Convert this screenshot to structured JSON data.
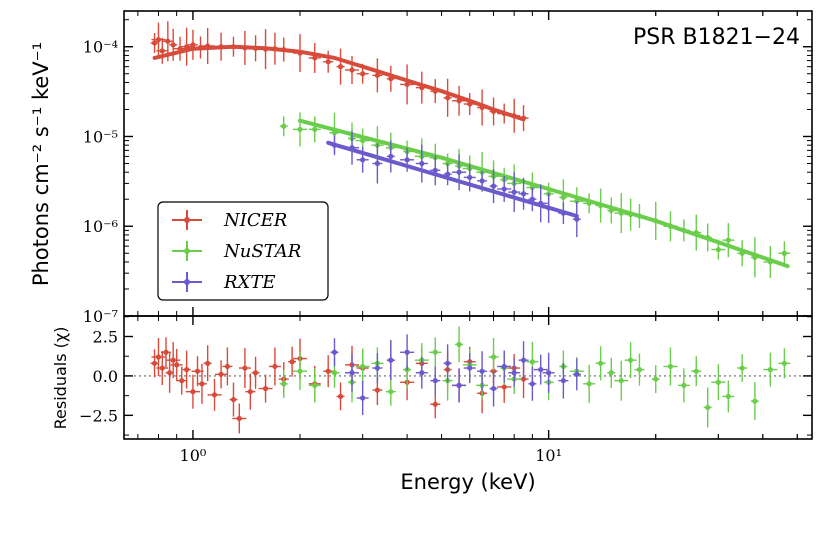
{
  "chart_data": [
    {
      "type": "scatter",
      "panel": "spectrum",
      "title": "PSR B1821−24",
      "xlabel": "",
      "ylabel": "Photons cm⁻² s⁻¹ keV⁻¹",
      "xscale": "log",
      "yscale": "log",
      "xlim": [
        0.64,
        55
      ],
      "ylim": [
        1e-07,
        0.00025
      ],
      "y_ticks": [
        {
          "value": 0.0001,
          "label": "10⁻⁴"
        },
        {
          "value": 1e-05,
          "label": "10⁻⁵"
        },
        {
          "value": 1e-06,
          "label": "10⁻⁶"
        },
        {
          "value": 1e-07,
          "label": "10⁻⁷"
        }
      ],
      "legend": {
        "placement": "lower-left"
      },
      "series": [
        {
          "name": "NICER",
          "color": "#d84b3b",
          "x": [
            0.78,
            0.8,
            0.82,
            0.85,
            0.88,
            0.92,
            0.96,
            1.0,
            1.05,
            1.1,
            1.2,
            1.3,
            1.4,
            1.5,
            1.6,
            1.7,
            1.8,
            2.0,
            2.2,
            2.4,
            2.6,
            2.8,
            3.0,
            3.3,
            3.6,
            4.0,
            4.4,
            4.8,
            5.2,
            5.6,
            6.0,
            6.5,
            7.0,
            7.5,
            8.0,
            8.5
          ],
          "y": [
            0.00011,
            0.00012,
            9e-05,
            0.000115,
            0.000105,
            9.5e-05,
            0.0001,
            0.000105,
            9.8e-05,
            0.000102,
            0.0001,
            0.0001,
            9.7e-05,
            9.6e-05,
            9.4e-05,
            9.5e-05,
            9.3e-05,
            8.5e-05,
            7.5e-05,
            6.8e-05,
            6e-05,
            5.5e-05,
            5e-05,
            4.8e-05,
            4.4e-05,
            3.8e-05,
            3.5e-05,
            3.2e-05,
            2.7e-05,
            2.5e-05,
            2.3e-05,
            2.1e-05,
            1.9e-05,
            1.8e-05,
            1.7e-05,
            1.6e-05
          ],
          "model_x": [
            0.78,
            1.0,
            1.3,
            1.6,
            2.0,
            2.5,
            3.0,
            4.0,
            5.0,
            6.0,
            7.0,
            8.5
          ],
          "model_y": [
            7.5e-05,
            9.5e-05,
            0.0001,
            9.6e-05,
            8.8e-05,
            7.5e-05,
            6e-05,
            4.2e-05,
            3.2e-05,
            2.5e-05,
            2e-05,
            1.55e-05
          ]
        },
        {
          "name": "NuSTAR",
          "color": "#6acd4b",
          "x": [
            1.8,
            2.0,
            2.2,
            2.5,
            2.8,
            3.0,
            3.3,
            3.6,
            4.0,
            4.4,
            4.8,
            5.2,
            5.6,
            6.0,
            6.5,
            7.0,
            7.5,
            8.0,
            9.0,
            10.0,
            11.0,
            12.0,
            13.0,
            14.0,
            15.0,
            16.0,
            17.0,
            18.0,
            20.0,
            22.0,
            24.0,
            26.0,
            28.0,
            30.0,
            32.0,
            35.0,
            38.0,
            42.0,
            46.0
          ],
          "y": [
            1.3e-05,
            1.2e-05,
            1.2e-05,
            1.1e-05,
            9.5e-06,
            9e-06,
            8e-06,
            7.5e-06,
            6.8e-06,
            6e-06,
            5.8e-06,
            5e-06,
            4.7e-06,
            4.4e-06,
            4e-06,
            3.6e-06,
            3.3e-06,
            3e-06,
            2.7e-06,
            2.3e-06,
            2.1e-06,
            1.9e-06,
            1.8e-06,
            1.7e-06,
            1.5e-06,
            1.4e-06,
            1.35e-06,
            1.3e-06,
            1.15e-06,
            1e-06,
            9e-07,
            8.5e-07,
            7.5e-07,
            5.5e-07,
            7e-07,
            5e-07,
            4.5e-07,
            4e-07,
            5e-07
          ],
          "model_x": [
            2.0,
            5.0,
            10.0,
            20.0,
            47.0
          ],
          "model_y": [
            1.5e-05,
            5.8e-06,
            2.6e-06,
            1.15e-06,
            3.6e-07
          ]
        },
        {
          "name": "RXTE",
          "color": "#6a5acd",
          "x": [
            2.5,
            2.8,
            3.0,
            3.3,
            3.6,
            4.0,
            4.4,
            4.8,
            5.2,
            5.6,
            6.0,
            6.5,
            7.0,
            7.5,
            8.0,
            8.5,
            9.0,
            9.5,
            10.0,
            11.0,
            12.0
          ],
          "y": [
            8e-06,
            7.5e-06,
            5.5e-06,
            5e-06,
            6e-06,
            5.5e-06,
            5e-06,
            4.2e-06,
            3.8e-06,
            4e-06,
            3.5e-06,
            3.2e-06,
            2.8e-06,
            2.6e-06,
            2.4e-06,
            2.3e-06,
            2e-06,
            1.8e-06,
            1.6e-06,
            1.4e-06,
            1.2e-06
          ],
          "model_x": [
            2.4,
            12.0
          ],
          "model_y": [
            8.5e-06,
            1.3e-06
          ]
        }
      ]
    },
    {
      "type": "scatter",
      "panel": "residuals",
      "xlabel": "Energy (keV)",
      "ylabel": "Residuals (χ)",
      "xscale": "log",
      "xlim": [
        0.64,
        55
      ],
      "ylim": [
        -4,
        3.8
      ],
      "x_ticks": [
        {
          "value": 1,
          "label": "10⁰"
        },
        {
          "value": 10,
          "label": "10¹"
        }
      ],
      "y_ticks": [
        {
          "value": 2.5,
          "label": "2.5"
        },
        {
          "value": 0.0,
          "label": "0.0"
        },
        {
          "value": -2.5,
          "label": "−2.5"
        }
      ],
      "zero_line": true,
      "series": [
        {
          "name": "NICER",
          "color": "#d84b3b",
          "x": [
            0.78,
            0.8,
            0.82,
            0.84,
            0.86,
            0.88,
            0.9,
            0.93,
            0.96,
            1.0,
            1.03,
            1.06,
            1.1,
            1.15,
            1.2,
            1.25,
            1.3,
            1.35,
            1.4,
            1.45,
            1.5,
            1.6,
            1.7,
            1.8,
            1.9,
            2.0,
            2.2,
            2.4,
            2.6,
            2.8,
            3.0,
            3.3,
            3.6,
            4.0,
            4.4,
            4.8,
            5.2,
            5.6,
            6.0,
            6.5,
            7.0,
            7.5,
            8.0,
            8.5
          ],
          "y": [
            0.8,
            1.2,
            0.5,
            1.5,
            0.2,
            1.0,
            0.7,
            -0.3,
            0.4,
            -1.0,
            0.3,
            -0.5,
            0.8,
            -1.2,
            0.1,
            0.6,
            -1.5,
            -2.7,
            0.5,
            -1.0,
            0.2,
            -0.8,
            0.6,
            -0.2,
            0.9,
            1.1,
            -0.5,
            0.3,
            -1.3,
            0.7,
            0.5,
            -0.9,
            1.0,
            -0.4,
            0.8,
            -1.8,
            0.4,
            -0.6,
            0.9,
            -1.1,
            0.3,
            -0.7,
            0.5,
            -0.2
          ]
        },
        {
          "name": "NuSTAR",
          "color": "#6acd4b",
          "x": [
            1.8,
            2.0,
            2.2,
            2.5,
            2.8,
            3.0,
            3.3,
            3.6,
            4.0,
            4.4,
            4.8,
            5.2,
            5.6,
            6.0,
            6.5,
            7.0,
            7.5,
            8.0,
            9.0,
            10.0,
            11.0,
            12.0,
            13.0,
            14.0,
            15.0,
            16.0,
            17.0,
            18.0,
            20.0,
            22.0,
            24.0,
            26.0,
            28.0,
            30.0,
            32.0,
            35.0,
            38.0,
            42.0,
            46.0
          ],
          "y": [
            -0.5,
            0.3,
            -0.6,
            0.2,
            -0.4,
            0.6,
            0.8,
            -1.0,
            0.4,
            1.0,
            1.5,
            -0.3,
            2.0,
            0.7,
            -0.6,
            1.2,
            0.5,
            -0.2,
            0.9,
            -0.4,
            0.6,
            0.3,
            -0.5,
            0.8,
            0.2,
            -0.3,
            1.0,
            0.4,
            -0.2,
            0.6,
            -0.6,
            0.3,
            -2.0,
            -0.4,
            -1.3,
            0.5,
            -1.6,
            0.4,
            0.8
          ]
        },
        {
          "name": "RXTE",
          "color": "#6a5acd",
          "x": [
            2.5,
            2.8,
            3.0,
            3.3,
            3.6,
            4.0,
            4.4,
            4.8,
            5.2,
            5.6,
            6.0,
            6.5,
            7.0,
            7.5,
            8.0,
            8.5,
            9.0,
            9.5,
            10.0,
            11.0,
            12.0
          ],
          "y": [
            1.5,
            0.2,
            -1.4,
            0.5,
            1.0,
            1.5,
            0.2,
            -0.3,
            0.8,
            -0.6,
            0.5,
            0.3,
            -0.8,
            0.6,
            0.2,
            1.0,
            -0.5,
            0.4,
            0.2,
            -0.3,
            0.1
          ]
        }
      ]
    }
  ]
}
